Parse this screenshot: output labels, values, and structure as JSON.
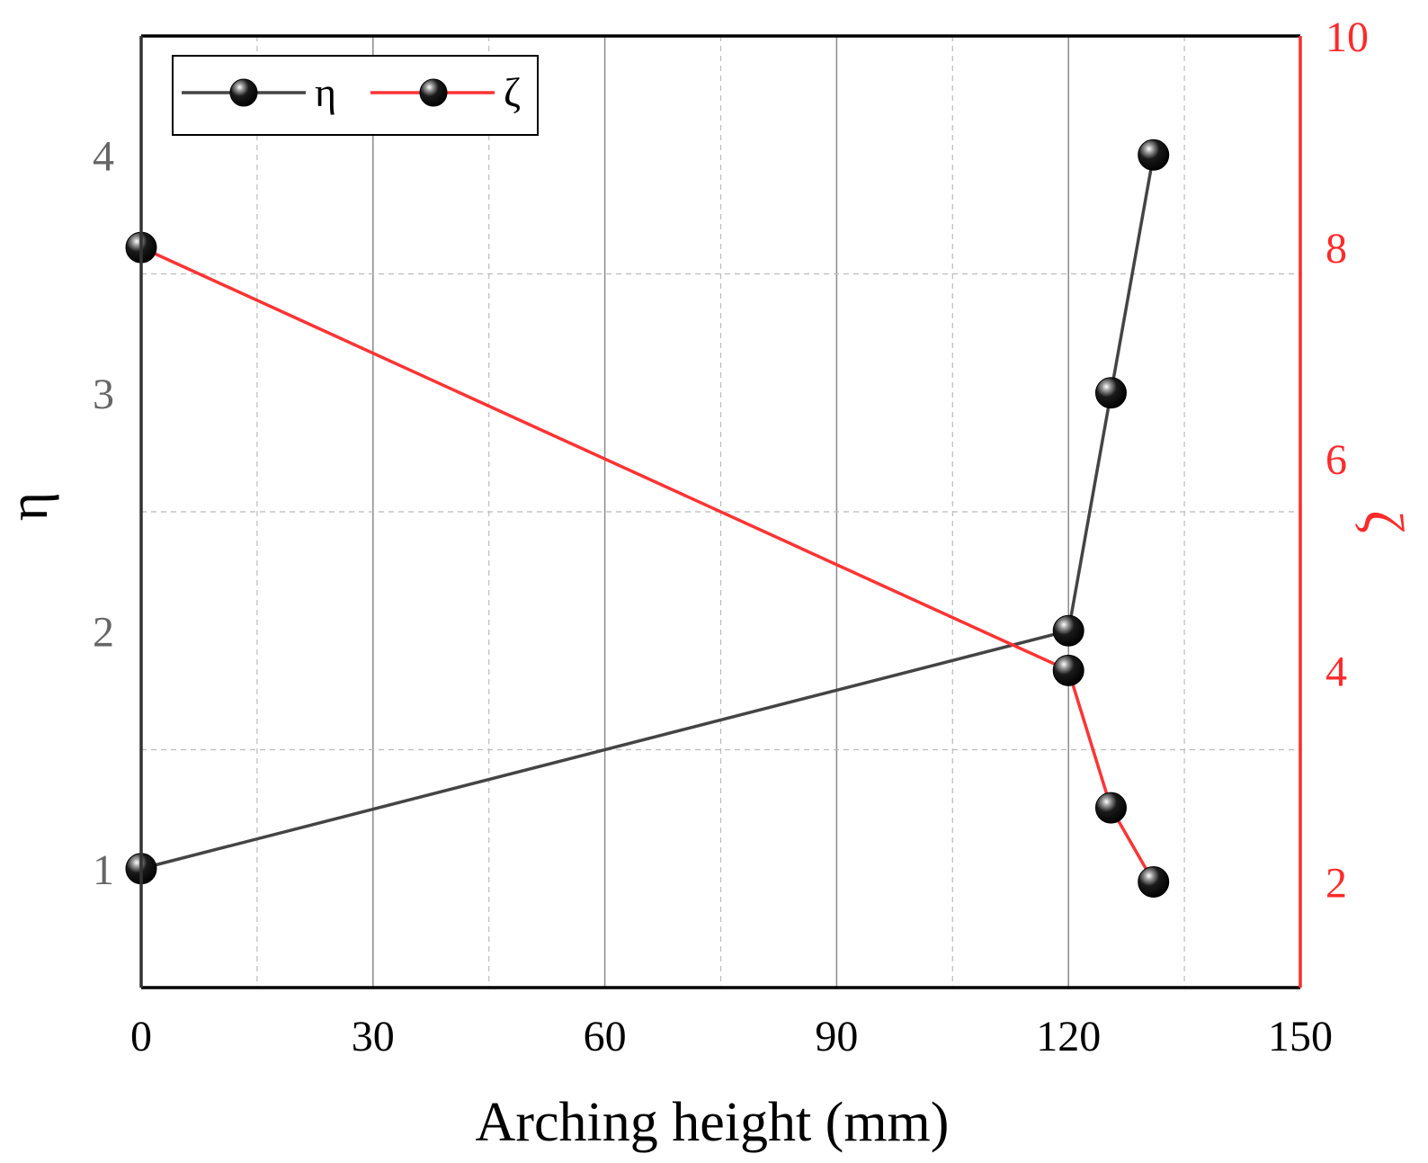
{
  "chart_data": {
    "type": "line",
    "xlabel": "Arching height (mm)",
    "ylabel": "η",
    "y2label": "ζ",
    "xlim": [
      0,
      150
    ],
    "ylim": [
      0.5,
      4.5
    ],
    "y2lim": [
      1,
      10
    ],
    "xticks": [
      "0",
      "30",
      "60",
      "90",
      "120",
      "150"
    ],
    "yticks": [
      "1",
      "2",
      "3",
      "4"
    ],
    "y2ticks": [
      "2",
      "4",
      "6",
      "8",
      "10"
    ],
    "grid": true,
    "legend_position": "top-left",
    "series": [
      {
        "name": "η",
        "axis": "left",
        "color": "#444444",
        "x": [
          0,
          120,
          125.5,
          131
        ],
        "y": [
          1.0,
          2.0,
          3.0,
          4.0
        ]
      },
      {
        "name": "ζ",
        "axis": "right",
        "color": "#ff3333",
        "x": [
          0,
          120,
          125.5,
          131
        ],
        "y": [
          8.0,
          4.0,
          2.7,
          2.0
        ]
      }
    ],
    "colors": {
      "left_axis": "#666666",
      "right_axis": "#ff2a2a",
      "marker": "#000000"
    }
  }
}
